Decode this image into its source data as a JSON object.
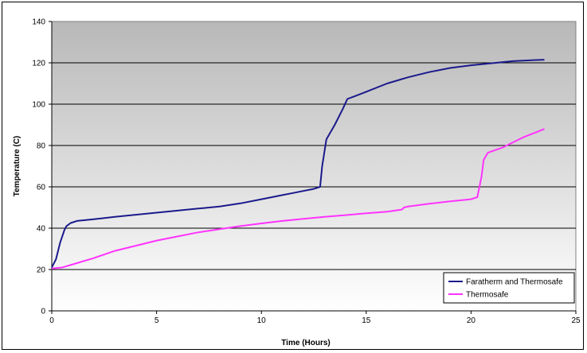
{
  "chart_data": {
    "type": "line",
    "xlabel": "Time (Hours)",
    "ylabel": "Temperature (C)",
    "xlim": [
      0,
      25
    ],
    "ylim": [
      0,
      140
    ],
    "x_ticks": [
      0,
      5,
      10,
      15,
      20,
      25
    ],
    "y_ticks": [
      0,
      20,
      40,
      60,
      80,
      100,
      120,
      140
    ],
    "grid": "horizontal",
    "legend_position": "bottom-right",
    "plot_background": "gradient gray to white",
    "series": [
      {
        "name": "Faratherm and Thermosafe",
        "color": "#1a1a8c",
        "points": [
          [
            0,
            21
          ],
          [
            0.2,
            25
          ],
          [
            0.4,
            33
          ],
          [
            0.6,
            39
          ],
          [
            0.7,
            41
          ],
          [
            0.9,
            42.5
          ],
          [
            1.2,
            43.5
          ],
          [
            2,
            44.3
          ],
          [
            3,
            45.5
          ],
          [
            4,
            46.5
          ],
          [
            5,
            47.5
          ],
          [
            6,
            48.5
          ],
          [
            7,
            49.5
          ],
          [
            8,
            50.5
          ],
          [
            9,
            52
          ],
          [
            10,
            54
          ],
          [
            10.5,
            55
          ],
          [
            11,
            56
          ],
          [
            11.5,
            57
          ],
          [
            12,
            58
          ],
          [
            12.5,
            59
          ],
          [
            12.8,
            60
          ],
          [
            12.9,
            70
          ],
          [
            13.1,
            83
          ],
          [
            13.5,
            90
          ],
          [
            13.9,
            98
          ],
          [
            14.1,
            102.5
          ],
          [
            14.5,
            104
          ],
          [
            15,
            106
          ],
          [
            16,
            110
          ],
          [
            17,
            113
          ],
          [
            18,
            115.5
          ],
          [
            19,
            117.5
          ],
          [
            20,
            118.8
          ],
          [
            21,
            119.8
          ],
          [
            22,
            120.8
          ],
          [
            23,
            121.3
          ],
          [
            23.5,
            121.5
          ]
        ]
      },
      {
        "name": "Thermosafe",
        "color": "#ff33ff",
        "points": [
          [
            0,
            20.5
          ],
          [
            0.5,
            21
          ],
          [
            1,
            22.5
          ],
          [
            2,
            25.5
          ],
          [
            3,
            29
          ],
          [
            4,
            31.5
          ],
          [
            5,
            34
          ],
          [
            6,
            36
          ],
          [
            7,
            38
          ],
          [
            8,
            39.5
          ],
          [
            9,
            41
          ],
          [
            10,
            42.3
          ],
          [
            11,
            43.5
          ],
          [
            12,
            44.5
          ],
          [
            13,
            45.5
          ],
          [
            14,
            46.3
          ],
          [
            15,
            47.2
          ],
          [
            16,
            48
          ],
          [
            16.7,
            49
          ],
          [
            16.8,
            50
          ],
          [
            17,
            50.5
          ],
          [
            18,
            51.8
          ],
          [
            19,
            53
          ],
          [
            20,
            54
          ],
          [
            20.3,
            55
          ],
          [
            20.5,
            65
          ],
          [
            20.6,
            73
          ],
          [
            20.8,
            76.5
          ],
          [
            21.5,
            79
          ],
          [
            22,
            81.5
          ],
          [
            22.5,
            84
          ],
          [
            23,
            86
          ],
          [
            23.5,
            88
          ]
        ]
      }
    ]
  }
}
